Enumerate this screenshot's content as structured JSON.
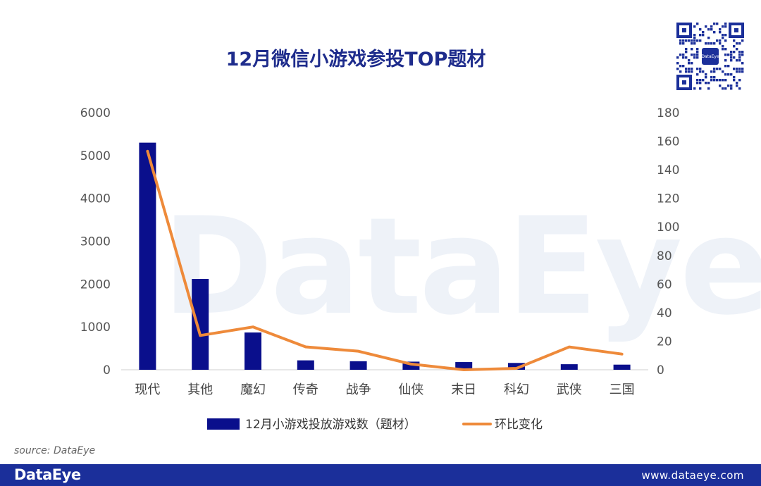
{
  "title": "12月微信小游戏参投TOP题材",
  "watermark": "DataEye",
  "qr_label": "DataEye",
  "source": "source: DataEye",
  "footer": {
    "brand": "DataEye",
    "url": "www.dataeye.com"
  },
  "colors": {
    "bar": "#0a0f8c",
    "line": "#ee8a3a",
    "footer": "#1b2f9a",
    "title": "#1e2c8c"
  },
  "chart_data": {
    "type": "bar",
    "title": "12月微信小游戏参投TOP题材",
    "categories": [
      "现代",
      "其他",
      "魔幻",
      "传奇",
      "战争",
      "仙侠",
      "末日",
      "科幻",
      "武侠",
      "三国"
    ],
    "series": [
      {
        "name": "12月小游戏投放游戏数（题材）",
        "type": "bar",
        "axis": "left",
        "values": [
          5300,
          2120,
          870,
          220,
          200,
          190,
          180,
          160,
          130,
          120
        ]
      },
      {
        "name": "环比变化",
        "type": "line",
        "axis": "right",
        "values": [
          153,
          24,
          30,
          16,
          13,
          4,
          0,
          1,
          16,
          11
        ]
      }
    ],
    "y_left": {
      "min": 0,
      "max": 6000,
      "ticks": [
        "0",
        "1000",
        "2000",
        "3000",
        "4000",
        "5000",
        "6000"
      ]
    },
    "y_right": {
      "min": 0,
      "max": 180,
      "ticks": [
        "0",
        "20",
        "40",
        "60",
        "80",
        "100",
        "120",
        "140",
        "160",
        "180"
      ]
    },
    "grid": false,
    "legend": "bottom"
  }
}
